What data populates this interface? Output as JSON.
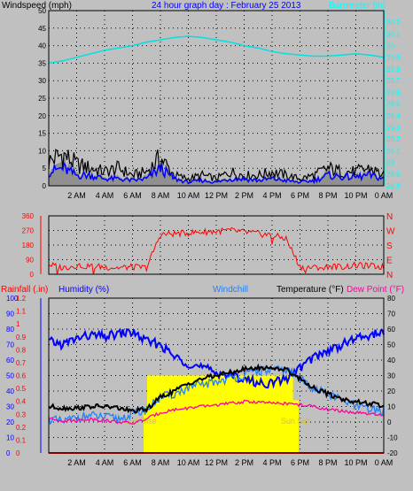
{
  "chart_data": [
    {
      "type": "line",
      "title": "24 hour graph day : February 25 2013",
      "ylabel": "Windspeed (mph)",
      "y2label": "Barometer (in)",
      "ylim": [
        0,
        50
      ],
      "y2lim": [
        28.8,
        30.3
      ],
      "yticks": [
        "0",
        "5",
        "10",
        "15",
        "20",
        "25",
        "30",
        "35",
        "40",
        "45",
        "50"
      ],
      "y2ticks": [
        "28.8",
        "28.9",
        "29",
        "29.1",
        "29.2",
        "29.3",
        "29.4",
        "29.5",
        "29.6",
        "29.7",
        "29.8",
        "29.9",
        "30",
        "30.1",
        "30.2"
      ],
      "xticks": [
        "2 AM",
        "4 AM",
        "6 AM",
        "8 AM",
        "10 AM",
        "12 PM",
        "2 PM",
        "4 PM",
        "6 PM",
        "8 PM",
        "10 PM",
        "0 AM"
      ],
      "grid": true,
      "colors": {
        "gust": "#000000",
        "avg_wind": "#0000ff",
        "wind_fill": "#909090",
        "barometer": "#00e0e0",
        "title": "#0000ff",
        "y2axis": "#00ffff"
      },
      "series": [
        {
          "name": "Barometer (in)",
          "axis": "right",
          "x": [
            0,
            1,
            2,
            3,
            4,
            5,
            6,
            7,
            8,
            9,
            10,
            11,
            12,
            13,
            14,
            15,
            16,
            17,
            18,
            19,
            20,
            21,
            22,
            23,
            24
          ],
          "values": [
            29.85,
            29.87,
            29.9,
            29.93,
            29.96,
            29.98,
            30.0,
            30.03,
            30.05,
            30.07,
            30.08,
            30.07,
            30.05,
            30.03,
            30.0,
            29.98,
            29.95,
            29.93,
            29.92,
            29.91,
            29.91,
            29.92,
            29.93,
            29.92,
            29.9
          ]
        },
        {
          "name": "Wind gust (mph)",
          "axis": "left",
          "x": [
            0,
            1,
            2,
            3,
            4,
            5,
            6,
            7,
            8,
            9,
            10,
            11,
            12,
            13,
            14,
            15,
            16,
            17,
            18,
            19,
            20,
            21,
            22,
            23,
            24
          ],
          "values": [
            7,
            9,
            6,
            5,
            4,
            5,
            3,
            4,
            8,
            3,
            2,
            3,
            2,
            4,
            3,
            3,
            4,
            3,
            2,
            3,
            5,
            4,
            4,
            5,
            3
          ]
        },
        {
          "name": "Wind average (mph)",
          "axis": "left",
          "x": [
            0,
            1,
            2,
            3,
            4,
            5,
            6,
            7,
            8,
            9,
            10,
            11,
            12,
            13,
            14,
            15,
            16,
            17,
            18,
            19,
            20,
            21,
            22,
            23,
            24
          ],
          "values": [
            4,
            5,
            3,
            3,
            2,
            2,
            1.5,
            2,
            5,
            2,
            1,
            1.5,
            1,
            2,
            2,
            1.5,
            2,
            1.5,
            1,
            1.5,
            3,
            2.5,
            2.5,
            3,
            2
          ]
        }
      ]
    },
    {
      "type": "scatter",
      "ylim": [
        0,
        360
      ],
      "yticks": [
        "0",
        "90",
        "180",
        "270",
        "360"
      ],
      "compass": [
        "N",
        "E",
        "S",
        "W",
        "N"
      ],
      "xticks": [
        "2 AM",
        "4 AM",
        "6 AM",
        "8 AM",
        "10 AM",
        "12 PM",
        "2 PM",
        "4 PM",
        "6 PM",
        "8 PM",
        "10 PM",
        "0 AM"
      ],
      "grid": true,
      "colors": {
        "direction": "#ff0000",
        "compass": "#ff0000",
        "axis": "#ff0000"
      },
      "series": [
        {
          "name": "Wind direction",
          "x": [
            0,
            1,
            2,
            3,
            4,
            5,
            6,
            7,
            8,
            9,
            10,
            11,
            12,
            13,
            14,
            15,
            16,
            17,
            18,
            19,
            20,
            21,
            22,
            23,
            24
          ],
          "values": [
            60,
            40,
            55,
            50,
            45,
            40,
            45,
            40,
            245,
            250,
            255,
            260,
            265,
            270,
            260,
            250,
            240,
            220,
            45,
            40,
            50,
            45,
            55,
            50,
            45
          ]
        }
      ]
    },
    {
      "type": "line",
      "legend": [
        "Rainfall (.in)",
        "Humidity (%)",
        "Windchill",
        "Temperature (°F)",
        "Dew Point (°F)"
      ],
      "ylim_rain": [
        0,
        1.2
      ],
      "ylim_humidity": [
        0,
        100
      ],
      "ylim_temp": [
        -20,
        80
      ],
      "rain_ticks": [
        "0",
        "0.1",
        "0.2",
        "0.3",
        "0.4",
        "0.5",
        "0.6",
        "0.7",
        "0.8",
        "0.9",
        "1",
        "1.1",
        "1.2"
      ],
      "humidity_ticks": [
        "0",
        "10",
        "20",
        "30",
        "40",
        "50",
        "60",
        "70",
        "80",
        "90",
        "100"
      ],
      "temp_ticks": [
        "-20",
        "-10",
        "0",
        "10",
        "20",
        "30",
        "40",
        "50",
        "60",
        "70",
        "80"
      ],
      "xticks": [
        "2 AM",
        "4 AM",
        "6 AM",
        "8 AM",
        "10 AM",
        "12 PM",
        "2 PM",
        "4 PM",
        "6 PM",
        "8 PM",
        "10 PM",
        "0 AM"
      ],
      "annotations": [
        "Sun Rise",
        "Sun Set"
      ],
      "sun": {
        "rise": 6.8,
        "set": 17.9,
        "level": 30
      },
      "grid": true,
      "colors": {
        "rain": "#ff0000",
        "humidity": "#0000ff",
        "windchill": "#2080ff",
        "temperature": "#000000",
        "dewpoint": "#ff00a0",
        "sun": "#ffff00",
        "sunline": "#d0c040"
      },
      "series": [
        {
          "name": "Humidity (%)",
          "axis": "humidity",
          "x": [
            0,
            1,
            2,
            3,
            4,
            5,
            6,
            7,
            8,
            9,
            10,
            11,
            12,
            13,
            14,
            15,
            16,
            17,
            18,
            19,
            20,
            21,
            22,
            23,
            24
          ],
          "values": [
            72,
            70,
            74,
            76,
            75,
            77,
            78,
            72,
            70,
            62,
            58,
            55,
            52,
            50,
            48,
            45,
            45,
            48,
            55,
            62,
            66,
            70,
            74,
            76,
            78
          ]
        },
        {
          "name": "Windchill",
          "axis": "temp",
          "x": [
            0,
            1,
            2,
            3,
            4,
            5,
            6,
            7,
            8,
            9,
            10,
            11,
            12,
            13,
            14,
            15,
            16,
            17,
            18,
            19,
            20,
            21,
            22,
            23,
            24
          ],
          "values": [
            2,
            0,
            3,
            4,
            3,
            2,
            5,
            8,
            16,
            18,
            22,
            24,
            26,
            28,
            30,
            33,
            33,
            34,
            28,
            22,
            18,
            14,
            10,
            8,
            7
          ]
        },
        {
          "name": "Temperature (°F)",
          "axis": "temp",
          "x": [
            0,
            1,
            2,
            3,
            4,
            5,
            6,
            7,
            8,
            9,
            10,
            11,
            12,
            13,
            14,
            15,
            16,
            17,
            18,
            19,
            20,
            21,
            22,
            23,
            24
          ],
          "values": [
            10,
            9,
            9,
            10,
            10,
            9,
            7,
            8,
            16,
            20,
            25,
            28,
            30,
            32,
            34,
            35,
            35,
            34,
            28,
            22,
            18,
            15,
            13,
            12,
            10
          ]
        },
        {
          "name": "Dew Point (°F)",
          "axis": "temp",
          "x": [
            0,
            1,
            2,
            3,
            4,
            5,
            6,
            7,
            8,
            9,
            10,
            11,
            12,
            13,
            14,
            15,
            16,
            17,
            18,
            19,
            20,
            21,
            22,
            23,
            24
          ],
          "values": [
            2,
            1,
            1,
            2,
            1,
            0,
            -1,
            2,
            6,
            8,
            9,
            10,
            11,
            12,
            13,
            13,
            12,
            12,
            11,
            10,
            8,
            7,
            6,
            5,
            4
          ]
        },
        {
          "name": "Rainfall (.in)",
          "axis": "rain",
          "x": [
            0,
            24
          ],
          "values": [
            0,
            0
          ]
        }
      ]
    }
  ]
}
